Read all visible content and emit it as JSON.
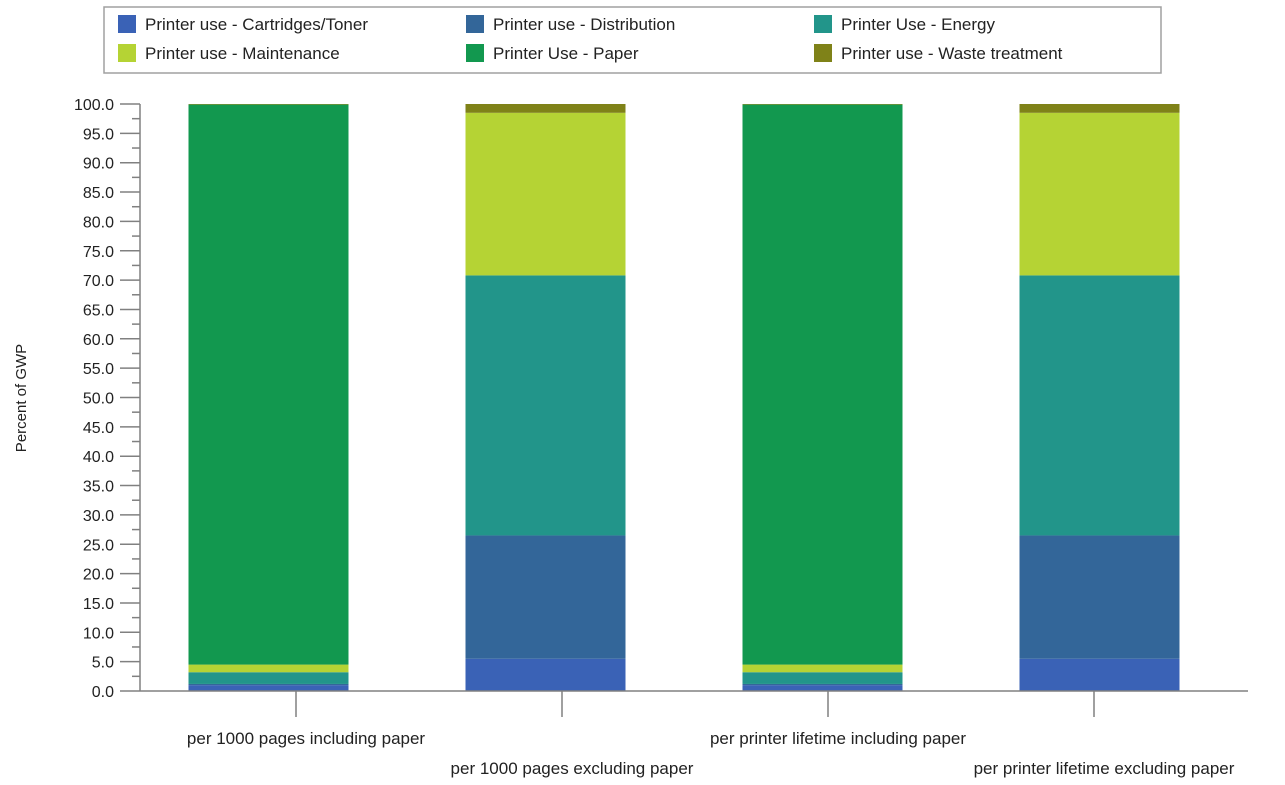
{
  "chart_data": {
    "type": "bar",
    "stacked": true,
    "categories": [
      "per 1000 pages including paper",
      "per 1000 pages excluding paper",
      "per printer lifetime including paper",
      "per printer lifetime excluding paper"
    ],
    "series": [
      {
        "name": "Printer use - Cartridges/Toner",
        "color": "#3a62b6",
        "values": [
          1.0,
          5.5,
          1.0,
          5.5
        ]
      },
      {
        "name": "Printer use - Distribution",
        "color": "#336699",
        "values": [
          0.2,
          21.0,
          0.2,
          21.0
        ]
      },
      {
        "name": "Printer Use - Energy",
        "color": "#22958a",
        "values": [
          2.0,
          44.3,
          2.0,
          44.3
        ]
      },
      {
        "name": "Printer use - Maintenance",
        "color": "#b5d334",
        "values": [
          1.3,
          27.7,
          1.3,
          27.7
        ]
      },
      {
        "name": "Printer Use - Paper",
        "color": "#12984f",
        "values": [
          95.4,
          0.0,
          95.4,
          0.0
        ]
      },
      {
        "name": "Printer use - Waste treatment",
        "color": "#7f8218",
        "values": [
          0.1,
          1.5,
          0.1,
          1.5
        ]
      }
    ],
    "ylabel": "Percent of GWP",
    "xlabel": "",
    "ylim": [
      0,
      100
    ],
    "yticks": [
      "0.0",
      "5.0",
      "10.0",
      "15.0",
      "20.0",
      "25.0",
      "30.0",
      "35.0",
      "40.0",
      "45.0",
      "50.0",
      "55.0",
      "60.0",
      "65.0",
      "70.0",
      "75.0",
      "80.0",
      "85.0",
      "90.0",
      "95.0",
      "100.0"
    ],
    "legend_position": "top",
    "grid": false
  }
}
